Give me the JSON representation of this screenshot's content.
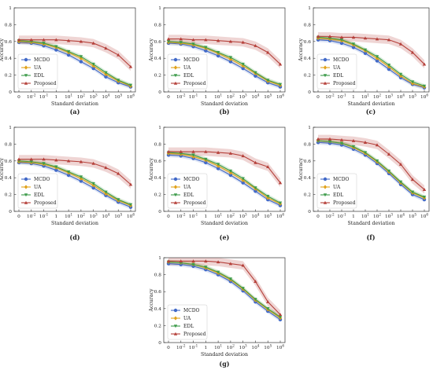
{
  "figure": {
    "panel_labels": [
      "(a)",
      "(b)",
      "(c)",
      "(d)",
      "(e)",
      "(f)",
      "(g)"
    ],
    "colors": {
      "MCDO": "#4169c8",
      "UA": "#e1a21a",
      "EDL": "#3d9b4a",
      "Proposed": "#b5403a"
    }
  },
  "chart_data": [
    {
      "panel": "(a)",
      "type": "line",
      "xlabel": "Standard deviation",
      "ylabel": "Accuracy",
      "x": [
        "0",
        "10^-2",
        "10^-1",
        "1",
        "10^1",
        "10^2",
        "10^3",
        "10^4",
        "10^5",
        "10^6"
      ],
      "ylim": [
        0,
        1
      ],
      "yticks": [
        "0",
        "0.2",
        "0.4",
        "0.6",
        "0.8",
        "1"
      ],
      "legend": "lower-left",
      "grid": false,
      "series": [
        {
          "name": "MCDO",
          "values": [
            0.59,
            0.58,
            0.55,
            0.5,
            0.44,
            0.36,
            0.28,
            0.18,
            0.11,
            0.06
          ]
        },
        {
          "name": "UA",
          "values": [
            0.6,
            0.59,
            0.57,
            0.53,
            0.47,
            0.4,
            0.31,
            0.21,
            0.13,
            0.07
          ]
        },
        {
          "name": "EDL",
          "values": [
            0.61,
            0.6,
            0.58,
            0.54,
            0.48,
            0.42,
            0.33,
            0.23,
            0.14,
            0.08
          ]
        },
        {
          "name": "Proposed",
          "values": [
            0.62,
            0.62,
            0.62,
            0.62,
            0.61,
            0.6,
            0.58,
            0.52,
            0.44,
            0.3
          ]
        }
      ]
    },
    {
      "panel": "(b)",
      "type": "line",
      "xlabel": "Standard deviation",
      "ylabel": "Accuracy",
      "x": [
        "0",
        "10^-2",
        "10^-1",
        "1",
        "10^1",
        "10^2",
        "10^3",
        "10^4",
        "10^5",
        "10^6"
      ],
      "ylim": [
        0,
        1
      ],
      "yticks": [
        "0",
        "0.2",
        "0.4",
        "0.6",
        "0.8",
        "1"
      ],
      "legend": "lower-left",
      "grid": false,
      "series": [
        {
          "name": "MCDO",
          "values": [
            0.58,
            0.57,
            0.54,
            0.49,
            0.43,
            0.36,
            0.28,
            0.19,
            0.11,
            0.06
          ]
        },
        {
          "name": "UA",
          "values": [
            0.59,
            0.58,
            0.56,
            0.52,
            0.46,
            0.39,
            0.31,
            0.22,
            0.13,
            0.08
          ]
        },
        {
          "name": "EDL",
          "values": [
            0.6,
            0.59,
            0.57,
            0.53,
            0.47,
            0.41,
            0.33,
            0.23,
            0.14,
            0.09
          ]
        },
        {
          "name": "Proposed",
          "values": [
            0.63,
            0.63,
            0.62,
            0.62,
            0.61,
            0.6,
            0.59,
            0.55,
            0.47,
            0.33
          ]
        }
      ]
    },
    {
      "panel": "(c)",
      "type": "line",
      "xlabel": "Standard deviation",
      "ylabel": "Accuracy",
      "x": [
        "0",
        "10^-2",
        "10^-1",
        "1",
        "10^1",
        "10^2",
        "10^3",
        "10^4",
        "10^5",
        "10^6"
      ],
      "ylim": [
        0,
        1
      ],
      "yticks": [
        "0",
        "0.2",
        "0.4",
        "0.6",
        "0.8",
        "1"
      ],
      "legend": "lower-left",
      "grid": false,
      "series": [
        {
          "name": "MCDO",
          "values": [
            0.62,
            0.61,
            0.58,
            0.53,
            0.46,
            0.37,
            0.27,
            0.17,
            0.09,
            0.05
          ]
        },
        {
          "name": "UA",
          "values": [
            0.64,
            0.63,
            0.61,
            0.56,
            0.49,
            0.4,
            0.3,
            0.19,
            0.1,
            0.06
          ]
        },
        {
          "name": "EDL",
          "values": [
            0.65,
            0.64,
            0.62,
            0.57,
            0.5,
            0.42,
            0.32,
            0.21,
            0.12,
            0.07
          ]
        },
        {
          "name": "Proposed",
          "values": [
            0.66,
            0.66,
            0.65,
            0.65,
            0.64,
            0.63,
            0.62,
            0.57,
            0.47,
            0.33
          ]
        }
      ]
    },
    {
      "panel": "(d)",
      "type": "line",
      "xlabel": "Standard deviation",
      "ylabel": "Accuracy",
      "x": [
        "0",
        "10^-2",
        "10^-1",
        "1",
        "10^1",
        "10^2",
        "10^3",
        "10^4",
        "10^5",
        "10^6"
      ],
      "ylim": [
        0,
        1
      ],
      "yticks": [
        "0",
        "0.2",
        "0.4",
        "0.6",
        "0.8",
        "1"
      ],
      "legend": "lower-left",
      "grid": false,
      "series": [
        {
          "name": "MCDO",
          "values": [
            0.58,
            0.57,
            0.54,
            0.49,
            0.43,
            0.36,
            0.28,
            0.19,
            0.11,
            0.05
          ]
        },
        {
          "name": "UA",
          "values": [
            0.59,
            0.58,
            0.56,
            0.52,
            0.46,
            0.39,
            0.31,
            0.21,
            0.13,
            0.07
          ]
        },
        {
          "name": "EDL",
          "values": [
            0.6,
            0.59,
            0.57,
            0.53,
            0.47,
            0.41,
            0.33,
            0.23,
            0.14,
            0.08
          ]
        },
        {
          "name": "Proposed",
          "values": [
            0.62,
            0.62,
            0.62,
            0.61,
            0.6,
            0.59,
            0.57,
            0.52,
            0.45,
            0.32
          ]
        }
      ]
    },
    {
      "panel": "(e)",
      "type": "line",
      "xlabel": "Standard deviation",
      "ylabel": "Accuracy",
      "x": [
        "0",
        "10^-2",
        "10^-1",
        "1",
        "10^1",
        "10^2",
        "10^3",
        "10^4",
        "10^5",
        "10^6"
      ],
      "ylim": [
        0,
        1
      ],
      "yticks": [
        "0",
        "0.2",
        "0.4",
        "0.6",
        "0.8",
        "1"
      ],
      "legend": "lower-left",
      "grid": false,
      "series": [
        {
          "name": "MCDO",
          "values": [
            0.67,
            0.66,
            0.63,
            0.58,
            0.51,
            0.43,
            0.34,
            0.24,
            0.14,
            0.07
          ]
        },
        {
          "name": "UA",
          "values": [
            0.69,
            0.68,
            0.65,
            0.61,
            0.54,
            0.46,
            0.37,
            0.27,
            0.16,
            0.09
          ]
        },
        {
          "name": "EDL",
          "values": [
            0.7,
            0.69,
            0.67,
            0.62,
            0.56,
            0.48,
            0.39,
            0.28,
            0.18,
            0.1
          ]
        },
        {
          "name": "Proposed",
          "values": [
            0.71,
            0.71,
            0.71,
            0.71,
            0.7,
            0.69,
            0.66,
            0.58,
            0.53,
            0.34
          ]
        }
      ]
    },
    {
      "panel": "(f)",
      "type": "line",
      "xlabel": "Standard deviation",
      "ylabel": "Accuracy",
      "x": [
        "0",
        "10^-2",
        "10^-1",
        "1",
        "10^1",
        "10^2",
        "10^3",
        "10^4",
        "10^5",
        "10^6"
      ],
      "ylim": [
        0,
        1
      ],
      "yticks": [
        "0",
        "0.2",
        "0.4",
        "0.6",
        "0.8",
        "1"
      ],
      "legend": "lower-left",
      "grid": false,
      "series": [
        {
          "name": "MCDO",
          "values": [
            0.82,
            0.81,
            0.79,
            0.74,
            0.67,
            0.57,
            0.45,
            0.32,
            0.2,
            0.14
          ]
        },
        {
          "name": "UA",
          "values": [
            0.84,
            0.83,
            0.81,
            0.76,
            0.69,
            0.59,
            0.47,
            0.34,
            0.22,
            0.16
          ]
        },
        {
          "name": "EDL",
          "values": [
            0.84,
            0.83,
            0.81,
            0.77,
            0.7,
            0.6,
            0.48,
            0.35,
            0.23,
            0.17
          ]
        },
        {
          "name": "Proposed",
          "values": [
            0.86,
            0.86,
            0.85,
            0.84,
            0.82,
            0.79,
            0.68,
            0.56,
            0.38,
            0.26
          ]
        }
      ]
    },
    {
      "panel": "(g)",
      "type": "line",
      "xlabel": "Standard deviation",
      "ylabel": "Accuracy",
      "x": [
        "0",
        "10^-2",
        "10^-1",
        "1",
        "10^1",
        "10^2",
        "10^3",
        "10^4",
        "10^5",
        "10^6"
      ],
      "ylim": [
        0,
        1
      ],
      "yticks": [
        "0",
        "0.2",
        "0.4",
        "0.6",
        "0.8",
        "1"
      ],
      "legend": "lower-left",
      "grid": false,
      "series": [
        {
          "name": "MCDO",
          "values": [
            0.93,
            0.92,
            0.9,
            0.86,
            0.8,
            0.72,
            0.61,
            0.48,
            0.37,
            0.27
          ]
        },
        {
          "name": "UA",
          "values": [
            0.95,
            0.94,
            0.92,
            0.88,
            0.82,
            0.74,
            0.63,
            0.5,
            0.39,
            0.29
          ]
        },
        {
          "name": "EDL",
          "values": [
            0.95,
            0.94,
            0.92,
            0.89,
            0.83,
            0.75,
            0.64,
            0.51,
            0.4,
            0.3
          ]
        },
        {
          "name": "Proposed",
          "values": [
            0.96,
            0.96,
            0.96,
            0.96,
            0.95,
            0.93,
            0.91,
            0.72,
            0.48,
            0.33
          ]
        }
      ]
    }
  ]
}
